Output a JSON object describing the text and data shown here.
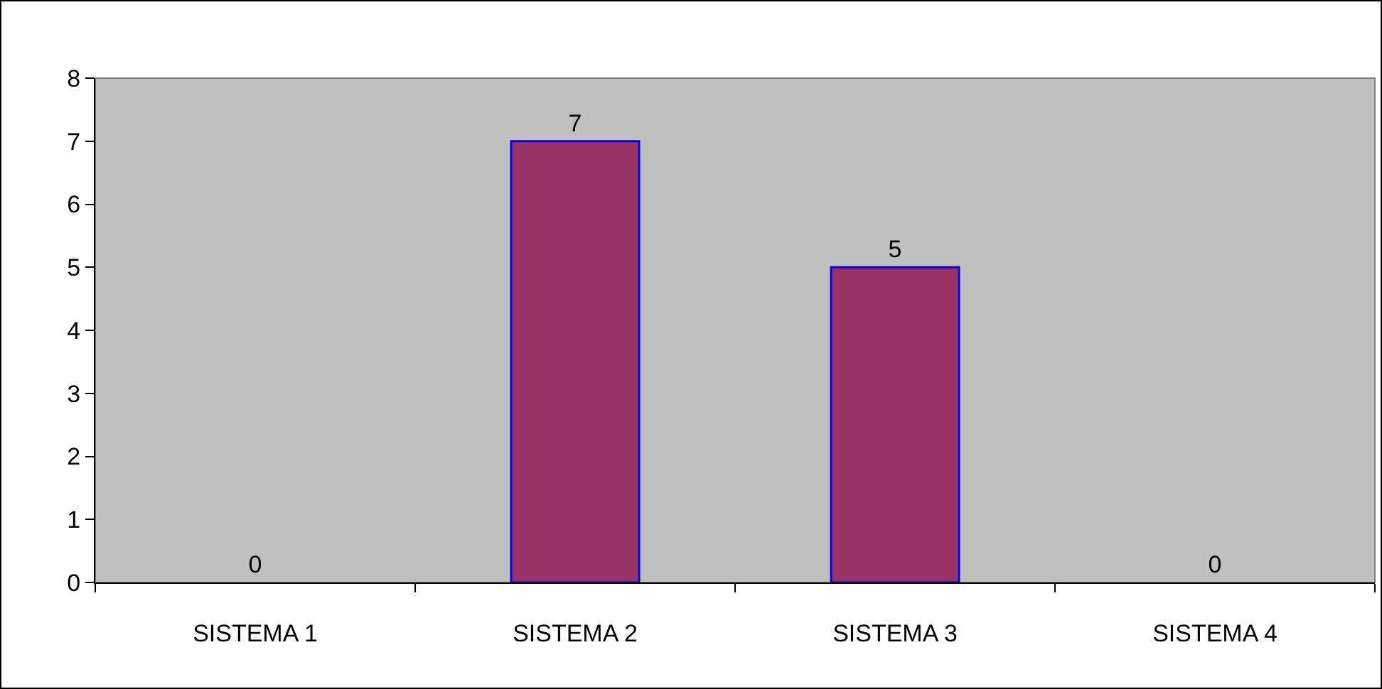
{
  "chart_data": {
    "type": "bar",
    "categories": [
      "SISTEMA 1",
      "SISTEMA 2",
      "SISTEMA 3",
      "SISTEMA 4"
    ],
    "values": [
      0,
      7,
      5,
      0
    ],
    "color": "#993366",
    "ylim": [
      0,
      8
    ],
    "yticks": [
      0,
      1,
      2,
      3,
      4,
      5,
      6,
      7,
      8
    ],
    "grid": false,
    "data_labels": true
  }
}
